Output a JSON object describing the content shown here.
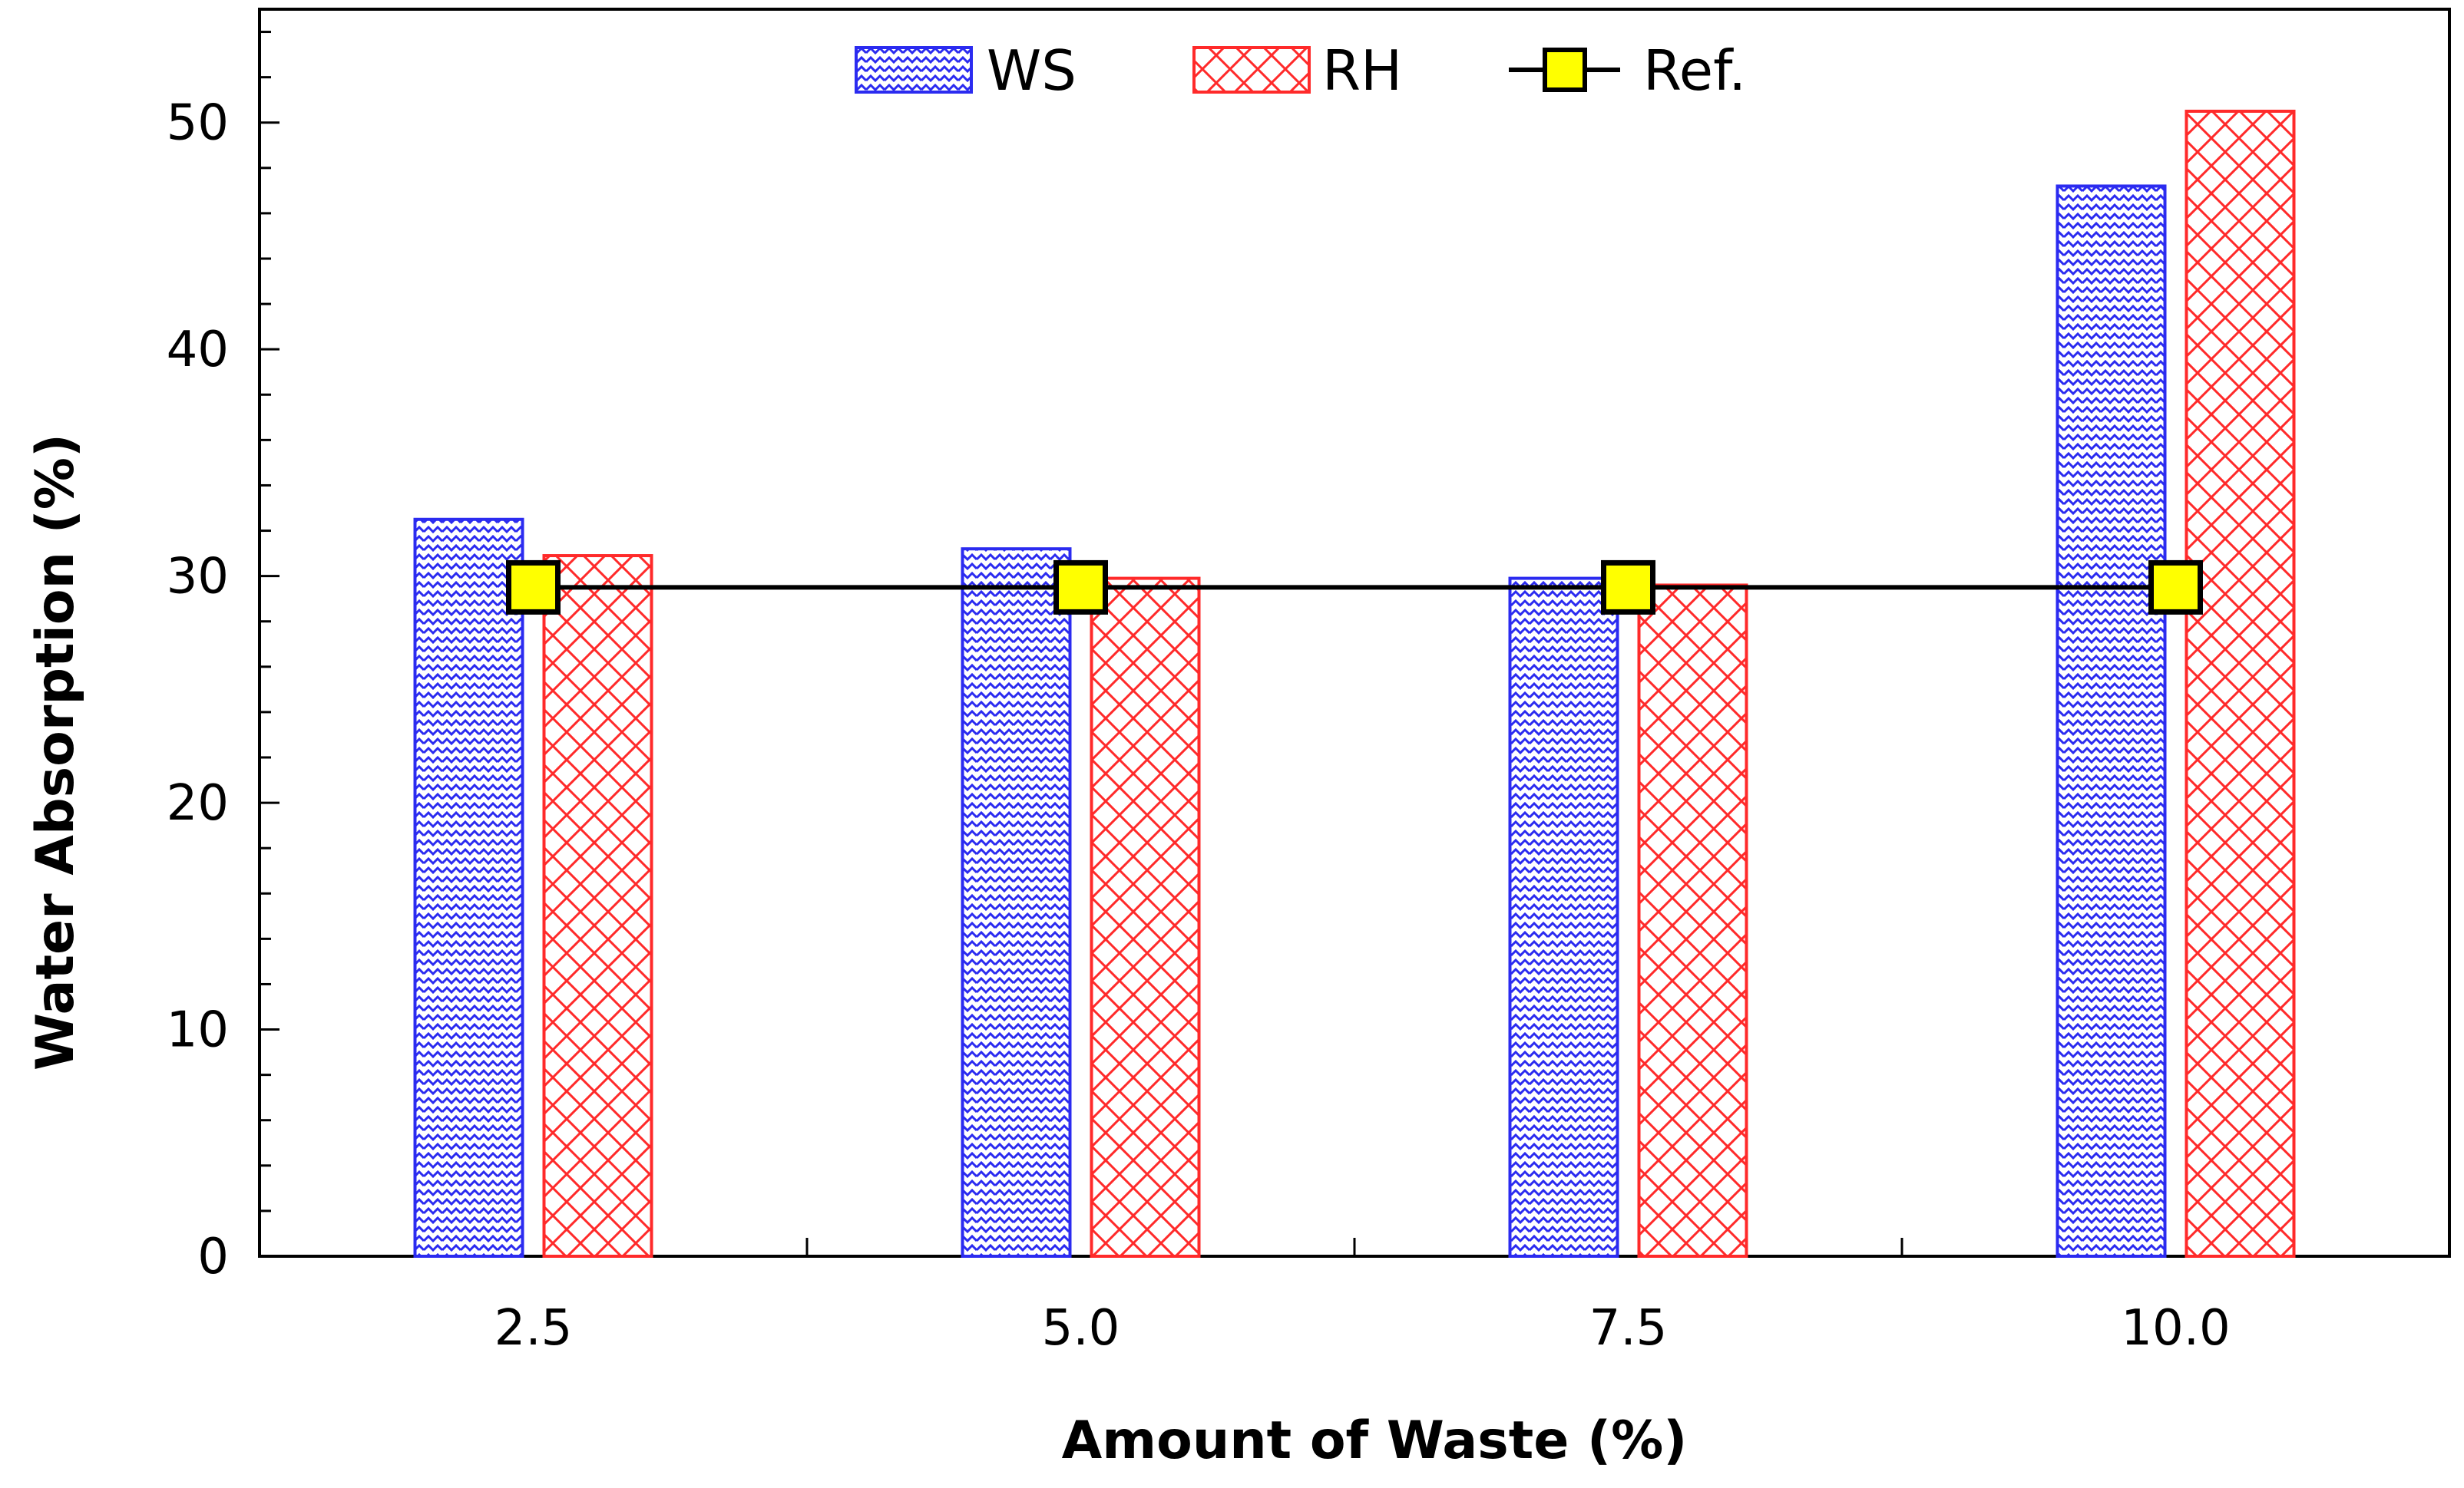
{
  "chart_data": {
    "type": "bar",
    "categories": [
      "2.5",
      "5.0",
      "7.5",
      "10.0"
    ],
    "series": [
      {
        "name": "WS",
        "type": "bar",
        "values": [
          32.5,
          31.2,
          29.9,
          47.2
        ],
        "color": "#2b2bf0",
        "pattern": "zigzag"
      },
      {
        "name": "RH",
        "type": "bar",
        "values": [
          30.9,
          29.9,
          29.6,
          50.5
        ],
        "color": "#ff2a2a",
        "pattern": "crosshatch"
      },
      {
        "name": "Ref.",
        "type": "line",
        "values": [
          29.5,
          29.5,
          29.5,
          29.5
        ],
        "color": "#000000",
        "marker_color": "#ffff00"
      }
    ],
    "title": "",
    "xlabel": "Amount of Waste (%)",
    "ylabel": "Water Absorption (%)",
    "ylim": [
      0,
      55
    ],
    "yticks": [
      0,
      10,
      20,
      30,
      40,
      50
    ],
    "legend": {
      "placement": "top-center"
    },
    "grid": false
  }
}
